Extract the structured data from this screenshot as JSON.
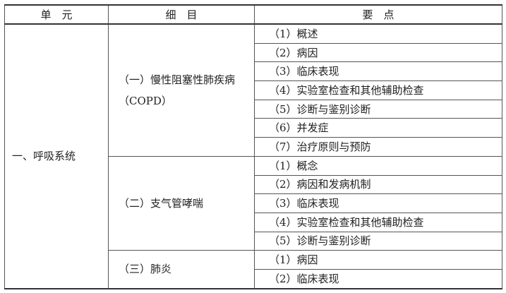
{
  "header": {
    "unit": "单　元",
    "item": "细　目",
    "point": "要　点"
  },
  "unit": "一、呼吸系统",
  "items": [
    {
      "title": "（一）慢性阻塞性肺疾病",
      "title2": "（COPD）",
      "points": [
        "（1）概述",
        "（2）病因",
        "（3）临床表现",
        "（4）实验室检查和其他辅助检查",
        "（5）诊断与鉴别诊断",
        "（6）并发症",
        "（7）治疗原则与预防"
      ]
    },
    {
      "title": "（二）支气管哮喘",
      "points": [
        "（1）概念",
        "（2）病因和发病机制",
        "（3）临床表现",
        "（4）实验室检查和其他辅助检查",
        "（5）诊断与鉴别诊断"
      ]
    },
    {
      "title": "（三）肺炎",
      "points": [
        "（1）病因",
        "（2）临床表现"
      ]
    }
  ]
}
